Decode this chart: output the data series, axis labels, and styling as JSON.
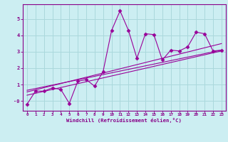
{
  "bg_color": "#cceef2",
  "line_color": "#990099",
  "grid_color": "#aad8dc",
  "xlabel": "Windchill (Refroidissement éolien,°C)",
  "xlabel_color": "#880088",
  "tick_color": "#880088",
  "ylim": [
    -0.6,
    5.9
  ],
  "xlim": [
    -0.5,
    23.5
  ],
  "yticks": [
    0,
    1,
    2,
    3,
    4,
    5
  ],
  "xticks": [
    0,
    1,
    2,
    3,
    4,
    5,
    6,
    7,
    8,
    9,
    10,
    11,
    12,
    13,
    14,
    15,
    16,
    17,
    18,
    19,
    20,
    21,
    22,
    23
  ],
  "scatter_x": [
    0,
    1,
    2,
    3,
    4,
    5,
    6,
    7,
    8,
    9,
    10,
    11,
    12,
    13,
    14,
    15,
    16,
    17,
    18,
    19,
    20,
    21,
    22,
    23
  ],
  "scatter_y": [
    -0.2,
    0.6,
    0.6,
    0.8,
    0.7,
    -0.15,
    1.2,
    1.3,
    0.9,
    1.8,
    4.3,
    5.5,
    4.3,
    2.6,
    4.1,
    4.05,
    2.5,
    3.1,
    3.05,
    3.3,
    4.2,
    4.1,
    3.05,
    3.1
  ],
  "trend1_x": [
    0,
    23
  ],
  "trend1_y": [
    0.35,
    3.05
  ],
  "trend2_x": [
    0,
    23
  ],
  "trend2_y": [
    0.55,
    3.5
  ],
  "trend3_x": [
    0,
    23
  ],
  "trend3_y": [
    0.65,
    3.1
  ],
  "spine_color": "#880088"
}
